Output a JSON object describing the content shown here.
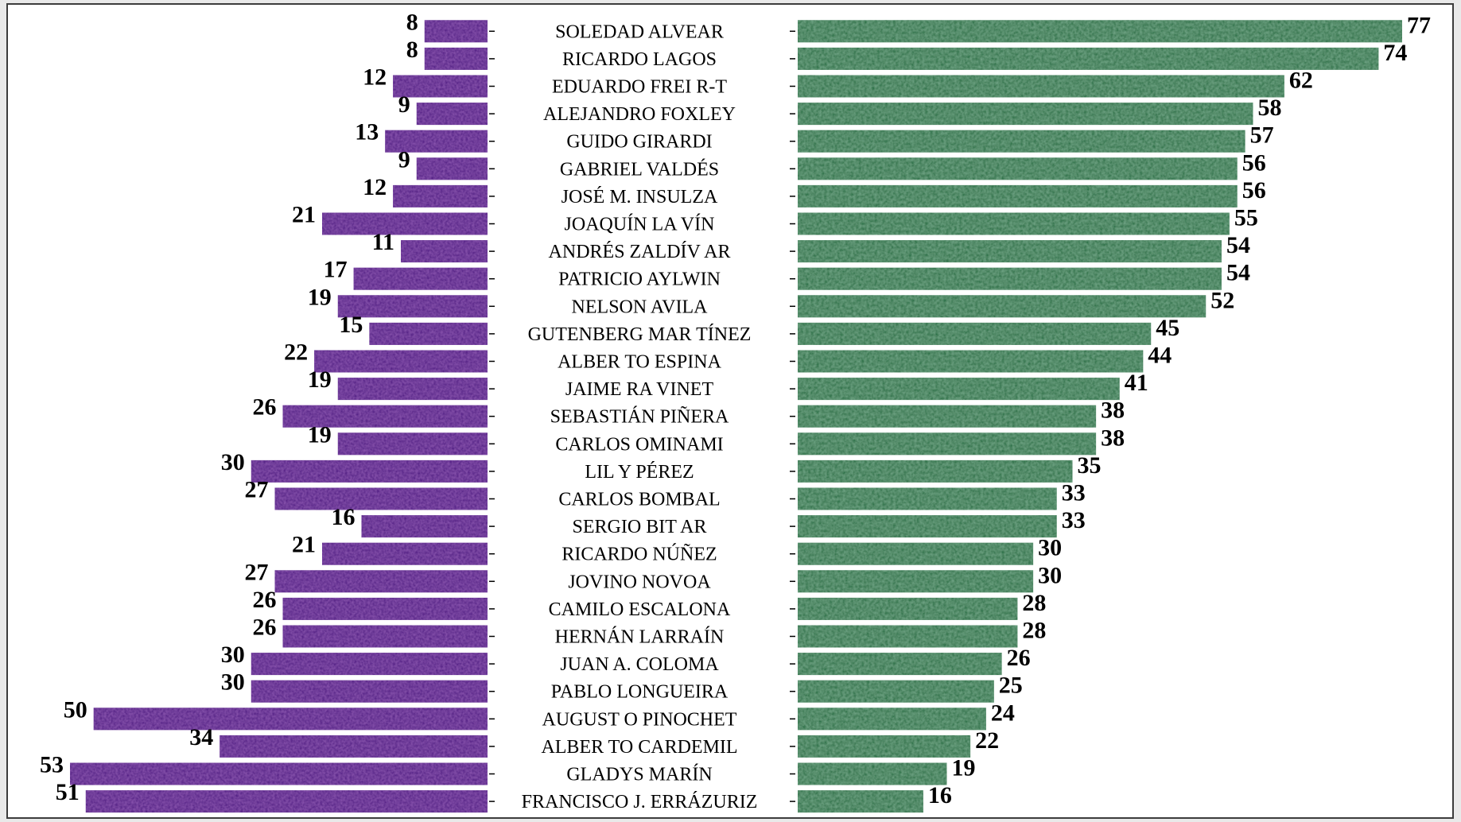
{
  "chart_data": {
    "type": "bar",
    "title": "",
    "xlabel": "",
    "ylabel": "",
    "left_color": "#4b1580",
    "right_color": "#1e6b3e",
    "left_xlim": [
      0,
      53
    ],
    "right_xlim": [
      0,
      77
    ],
    "categories": [
      "SOLEDAD  ALVEAR",
      "RICARDO LAGOS",
      "EDUARDO FREI R-T",
      "ALEJANDRO FOXLEY",
      "GUIDO GIRARDI",
      "GABRIEL  VALDÉS",
      "JOSÉ M. INSULZA",
      "JOAQUÍN LA VÍN",
      "ANDRÉS ZALDÍV AR",
      "PATRICIO  AYLWIN",
      "NELSON  AVILA",
      "GUTENBERG MAR  TÍNEZ",
      "ALBER TO ESPINA",
      "JAIME RA VINET",
      "SEBASTIÁN PIÑERA",
      "CARLOS OMINAMI",
      "LIL Y PÉREZ",
      "CARLOS BOMBAL",
      "SERGIO BIT AR",
      "RICARDO NÚÑEZ",
      "JOVINO NOVOA",
      "CAMILO ESCALONA",
      "HERNÁN LARRAÍN",
      "JUAN  A. COLOMA",
      "PABLO LONGUEIRA",
      "AUGUST O PINOCHET",
      "ALBER TO CARDEMIL",
      "GLADYS MARÍN",
      "FRANCISCO J. ERRÁZURIZ"
    ],
    "series": [
      {
        "values": [
          8,
          8,
          12,
          9,
          13,
          9,
          12,
          21,
          11,
          17,
          19,
          15,
          22,
          19,
          26,
          19,
          30,
          27,
          16,
          21,
          27,
          26,
          26,
          30,
          30,
          50,
          34,
          53,
          51
        ]
      },
      {
        "values": [
          77,
          74,
          62,
          58,
          57,
          56,
          56,
          55,
          54,
          54,
          52,
          45,
          44,
          41,
          38,
          38,
          35,
          33,
          33,
          30,
          30,
          28,
          28,
          26,
          25,
          24,
          22,
          19,
          16
        ]
      }
    ]
  }
}
